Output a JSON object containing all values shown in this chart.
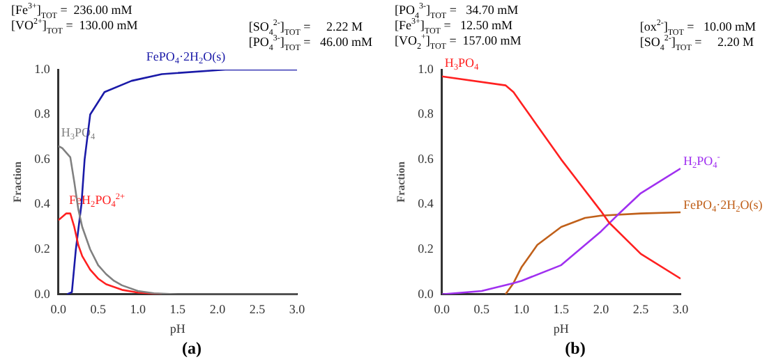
{
  "chart_data": [
    {
      "type": "line",
      "title": "(a)",
      "xlabel": "pH",
      "ylabel": "Fraction",
      "legend": false,
      "grid": false,
      "marker": "none",
      "line_style": "solid",
      "annotations": [
        "[Fe$^{3+}$]$_{TOT}$ =  236.00 mM",
        "[VO$^{2+}$]$_{TOT}$ =  130.00 mM",
        "[SO$_{4}$$^{2-}$]$_{TOT}$ =     2.22 M",
        "[PO$_{4}$$^{3-}$]$_{TOT}$ =   46.00 mM"
      ],
      "xlim": [
        0,
        3
      ],
      "xticks": [
        {
          "value": 0,
          "label": "0.0"
        },
        {
          "value": 0.5,
          "label": "0.5"
        },
        {
          "value": 1,
          "label": "1.0"
        },
        {
          "value": 1.5,
          "label": "1.5"
        },
        {
          "value": 2,
          "label": "2.0"
        },
        {
          "value": 2.5,
          "label": "2.5"
        },
        {
          "value": 3,
          "label": "3.0"
        }
      ],
      "ylim": [
        0,
        1
      ],
      "yticks": [
        {
          "value": 0,
          "label": "0.0"
        },
        {
          "value": 0.2,
          "label": "0.2"
        },
        {
          "value": 0.4,
          "label": "0.4"
        },
        {
          "value": 0.6,
          "label": "0.6"
        },
        {
          "value": 0.8,
          "label": "0.8"
        },
        {
          "value": 1,
          "label": "1.0"
        }
      ],
      "series": [
        {
          "name": "H$_{3}$PO$_{4}$",
          "color": "#808080",
          "x": [
            0,
            0.05,
            0.15,
            0.2,
            0.25,
            0.3,
            0.4,
            0.5,
            0.6,
            0.7,
            0.8,
            1.0,
            1.2,
            1.5,
            2,
            3
          ],
          "values": [
            0.66,
            0.65,
            0.61,
            0.5,
            0.38,
            0.3,
            0.2,
            0.13,
            0.09,
            0.06,
            0.04,
            0.015,
            0.005,
            0,
            0,
            0
          ]
        },
        {
          "name": "FeH$_{2}$PO$_{4}$$^{2+}$",
          "color": "#ff2020",
          "x": [
            0,
            0.1,
            0.15,
            0.2,
            0.25,
            0.3,
            0.4,
            0.5,
            0.6,
            0.8,
            1.0,
            1.3
          ],
          "values": [
            0.33,
            0.36,
            0.36,
            0.3,
            0.22,
            0.17,
            0.11,
            0.07,
            0.045,
            0.02,
            0.008,
            0
          ]
        },
        {
          "name": "FePO$_{4}$·2H$_{2}$O(s)",
          "color": "#1a1aa8",
          "x": [
            0.11,
            0.17,
            0.22,
            0.29,
            0.33,
            0.4,
            0.58,
            0.92,
            1.3,
            2.1,
            3
          ],
          "values": [
            0,
            0.01,
            0.2,
            0.4,
            0.6,
            0.8,
            0.9,
            0.95,
            0.98,
            1.0,
            1.0
          ]
        }
      ]
    },
    {
      "type": "line",
      "title": "(b)",
      "xlabel": "pH",
      "ylabel": "Fraction",
      "legend": false,
      "grid": false,
      "marker": "none",
      "line_style": "solid",
      "annotations": [
        "[PO$_{4}$$^{3-}$]$_{TOT}$ =   34.70 mM",
        "[Fe$^{3+}$]$_{TOT}$ =   12.50 mM",
        "[VO$_{2}$$^{+}$]$_{TOT}$ =  157.00 mM",
        "[ox$^{2-}$]$_{TOT}$ =   10.00 mM",
        "[SO$_{4}$$^{2-}$]$_{TOT}$ =     2.20 M"
      ],
      "xlim": [
        0,
        3
      ],
      "xticks": [
        {
          "value": 0,
          "label": "0.0"
        },
        {
          "value": 0.5,
          "label": "0.5"
        },
        {
          "value": 1,
          "label": "1.0"
        },
        {
          "value": 1.5,
          "label": "1.5"
        },
        {
          "value": 2,
          "label": "2.0"
        },
        {
          "value": 2.5,
          "label": "2.5"
        },
        {
          "value": 3,
          "label": "3.0"
        }
      ],
      "ylim": [
        0,
        1
      ],
      "yticks": [
        {
          "value": 0,
          "label": "0.0"
        },
        {
          "value": 0.2,
          "label": "0.2"
        },
        {
          "value": 0.4,
          "label": "0.4"
        },
        {
          "value": 0.6,
          "label": "0.6"
        },
        {
          "value": 0.8,
          "label": "0.8"
        },
        {
          "value": 1,
          "label": "1.0"
        }
      ],
      "series": [
        {
          "name": "H$_{3}$PO$_{4}$",
          "color": "#ff2020",
          "x": [
            0,
            0.8,
            0.9,
            1.0,
            1.2,
            1.5,
            2.0,
            2.1,
            2.5,
            3.0
          ],
          "values": [
            0.97,
            0.93,
            0.9,
            0.85,
            0.75,
            0.6,
            0.37,
            0.32,
            0.18,
            0.07
          ]
        },
        {
          "name": "H$_{2}$PO$_{4}$$^{-}$",
          "color": "#a030f0",
          "x": [
            0,
            0.5,
            0.9,
            1.0,
            1.5,
            2.0,
            2.2,
            2.5,
            3.0
          ],
          "values": [
            0,
            0.015,
            0.05,
            0.06,
            0.13,
            0.28,
            0.35,
            0.45,
            0.56
          ]
        },
        {
          "name": "FePO$_{4}$·2H$_{2}$O(s)",
          "color": "#c0601a",
          "x": [
            0.8,
            0.9,
            1.0,
            1.2,
            1.5,
            1.8,
            2.0,
            2.5,
            3.0
          ],
          "values": [
            0,
            0.05,
            0.12,
            0.22,
            0.3,
            0.34,
            0.35,
            0.36,
            0.365
          ]
        }
      ]
    }
  ]
}
